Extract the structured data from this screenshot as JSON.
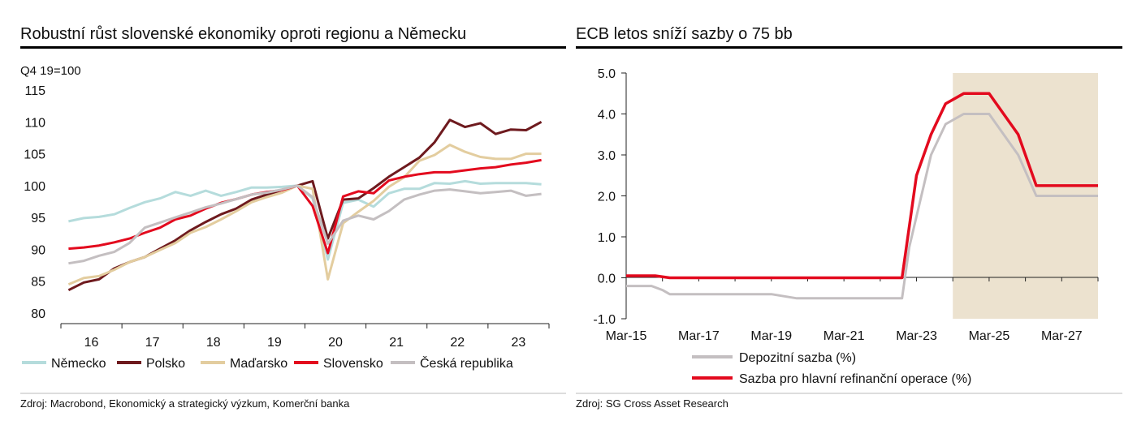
{
  "chart_data": [
    {
      "type": "line",
      "title": "Robustní růst slovenské ekonomiky oproti regionu a Německu",
      "ylabel": "Q4 19=100",
      "ylim": [
        80,
        115
      ],
      "yticks": [
        80,
        85,
        90,
        95,
        100,
        105,
        110,
        115
      ],
      "x_labels": [
        "16",
        "17",
        "18",
        "19",
        "20",
        "21",
        "22",
        "23"
      ],
      "xlim": [
        2016.0,
        2024.0
      ],
      "grid": false,
      "legend_position": "bottom",
      "source": "Zdroj: Macrobond, Ekonomický a strategický výzkum, Komerční banka",
      "series": [
        {
          "name": "Německo",
          "color": "#b5dcdc",
          "x": [
            2016.125,
            2016.375,
            2016.625,
            2016.875,
            2017.125,
            2017.375,
            2017.625,
            2017.875,
            2018.125,
            2018.375,
            2018.625,
            2018.875,
            2019.125,
            2019.375,
            2019.625,
            2019.875,
            2020.125,
            2020.375,
            2020.625,
            2020.875,
            2021.125,
            2021.375,
            2021.625,
            2021.875,
            2022.125,
            2022.375,
            2022.625,
            2022.875,
            2023.125,
            2023.375,
            2023.625,
            2023.875
          ],
          "y": [
            94.4,
            94.9,
            95.1,
            95.5,
            96.5,
            97.4,
            98.0,
            99.0,
            98.4,
            99.2,
            98.4,
            99.0,
            99.7,
            99.7,
            99.8,
            100.0,
            98.0,
            88.4,
            97.3,
            97.8,
            96.7,
            98.8,
            99.5,
            99.5,
            100.4,
            100.3,
            100.7,
            100.3,
            100.4,
            100.4,
            100.4,
            100.2
          ]
        },
        {
          "name": "Polsko",
          "color": "#6e1a1e",
          "x": [
            2016.125,
            2016.375,
            2016.625,
            2016.875,
            2017.125,
            2017.375,
            2017.625,
            2017.875,
            2018.125,
            2018.375,
            2018.625,
            2018.875,
            2019.125,
            2019.375,
            2019.625,
            2019.875,
            2020.125,
            2020.375,
            2020.625,
            2020.875,
            2021.125,
            2021.375,
            2021.625,
            2021.875,
            2022.125,
            2022.375,
            2022.625,
            2022.875,
            2023.125,
            2023.375,
            2023.625,
            2023.875
          ],
          "y": [
            83.6,
            84.8,
            85.3,
            87.0,
            88.0,
            88.8,
            90.1,
            91.4,
            93.0,
            94.3,
            95.5,
            96.4,
            97.8,
            98.6,
            99.3,
            100.0,
            100.7,
            91.7,
            97.8,
            98.0,
            99.6,
            101.4,
            102.9,
            104.4,
            106.8,
            110.3,
            109.2,
            109.8,
            108.1,
            108.8,
            108.7,
            110.0
          ]
        },
        {
          "name": "Maďarsko",
          "color": "#e3cd9f",
          "x": [
            2016.125,
            2016.375,
            2016.625,
            2016.875,
            2017.125,
            2017.375,
            2017.625,
            2017.875,
            2018.125,
            2018.375,
            2018.625,
            2018.875,
            2019.125,
            2019.375,
            2019.625,
            2019.875,
            2020.125,
            2020.375,
            2020.625,
            2020.875,
            2021.125,
            2021.375,
            2021.625,
            2021.875,
            2022.125,
            2022.375,
            2022.625,
            2022.875,
            2023.125,
            2023.375,
            2023.625,
            2023.875
          ],
          "y": [
            84.5,
            85.5,
            85.8,
            86.8,
            88.0,
            88.8,
            89.9,
            91.0,
            92.6,
            93.5,
            94.7,
            96.0,
            97.4,
            98.2,
            98.9,
            100.0,
            99.5,
            85.3,
            94.1,
            95.9,
            97.6,
            99.8,
            101.3,
            103.9,
            104.8,
            106.4,
            105.3,
            104.5,
            104.2,
            104.2,
            105.0,
            105.0
          ]
        },
        {
          "name": "Slovensko",
          "color": "#e30a1e",
          "x": [
            2016.125,
            2016.375,
            2016.625,
            2016.875,
            2017.125,
            2017.375,
            2017.625,
            2017.875,
            2018.125,
            2018.375,
            2018.625,
            2018.875,
            2019.125,
            2019.375,
            2019.625,
            2019.875,
            2020.125,
            2020.375,
            2020.625,
            2020.875,
            2021.125,
            2021.375,
            2021.625,
            2021.875,
            2022.125,
            2022.375,
            2022.625,
            2022.875,
            2023.125,
            2023.375,
            2023.625,
            2023.875
          ],
          "y": [
            90.1,
            90.3,
            90.6,
            91.1,
            91.7,
            92.6,
            93.4,
            94.7,
            95.3,
            96.4,
            97.3,
            97.9,
            98.6,
            99.0,
            99.3,
            100.0,
            96.8,
            89.4,
            98.3,
            99.1,
            98.8,
            100.8,
            101.4,
            101.8,
            102.1,
            102.1,
            102.4,
            102.7,
            102.9,
            103.3,
            103.6,
            104.0
          ]
        },
        {
          "name": "Česká republika",
          "color": "#c4bfc1",
          "x": [
            2016.125,
            2016.375,
            2016.625,
            2016.875,
            2017.125,
            2017.375,
            2017.625,
            2017.875,
            2018.125,
            2018.375,
            2018.625,
            2018.875,
            2019.125,
            2019.375,
            2019.625,
            2019.875,
            2020.125,
            2020.375,
            2020.625,
            2020.875,
            2021.125,
            2021.375,
            2021.625,
            2021.875,
            2022.125,
            2022.375,
            2022.625,
            2022.875,
            2023.125,
            2023.375,
            2023.625,
            2023.875
          ],
          "y": [
            87.8,
            88.2,
            89.0,
            89.6,
            91.0,
            93.4,
            94.2,
            95.0,
            95.8,
            96.6,
            97.2,
            97.9,
            98.6,
            98.9,
            99.4,
            100.0,
            98.2,
            90.9,
            94.5,
            95.3,
            94.7,
            96.0,
            97.8,
            98.6,
            99.2,
            99.4,
            99.1,
            98.8,
            99.0,
            99.2,
            98.4,
            98.7
          ]
        }
      ]
    },
    {
      "type": "line",
      "title": "ECB letos sníží sazby o 75 bb",
      "ylim": [
        -1.0,
        5.0
      ],
      "yticks": [
        -1.0,
        0.0,
        1.0,
        2.0,
        3.0,
        4.0,
        5.0
      ],
      "ytick_labels": [
        "-1.0",
        "0.0",
        "1.0",
        "2.0",
        "3.0",
        "4.0",
        "5.0"
      ],
      "x_labels": [
        "Mar-15",
        "Mar-17",
        "Mar-19",
        "Mar-21",
        "Mar-23",
        "Mar-25",
        "Mar-27"
      ],
      "xlim": [
        2015.0,
        2028.0
      ],
      "forecast_shading": {
        "from": 2024.0,
        "to": 2028.0,
        "color": "#ece2cf"
      },
      "grid": false,
      "legend_position": "bottom",
      "source": "Zdroj: SG Cross Asset Research",
      "series": [
        {
          "name": "Depozitní sazba (%)",
          "color": "#c4bfc1",
          "x": [
            2015.0,
            2015.4,
            2015.7,
            2016.0,
            2016.2,
            2019.0,
            2019.7,
            2022.0,
            2022.6,
            2022.8,
            2023.0,
            2023.4,
            2023.8,
            2024.3,
            2025.0,
            2025.8,
            2026.3,
            2027.0,
            2028.0
          ],
          "y": [
            -0.2,
            -0.2,
            -0.2,
            -0.3,
            -0.4,
            -0.4,
            -0.5,
            -0.5,
            -0.5,
            0.75,
            1.5,
            3.0,
            3.75,
            4.0,
            4.0,
            3.0,
            2.0,
            2.0,
            2.0
          ]
        },
        {
          "name": "Sazba pro hlavní refinanční operace (%)",
          "color": "#e30a1e",
          "x": [
            2015.0,
            2015.8,
            2016.2,
            2022.0,
            2022.6,
            2022.8,
            2023.0,
            2023.4,
            2023.8,
            2024.3,
            2025.0,
            2025.8,
            2026.3,
            2027.0,
            2028.0
          ],
          "y": [
            0.05,
            0.05,
            0.0,
            0.0,
            0.0,
            1.25,
            2.5,
            3.5,
            4.25,
            4.5,
            4.5,
            3.5,
            2.25,
            2.25,
            2.25
          ]
        }
      ]
    }
  ]
}
